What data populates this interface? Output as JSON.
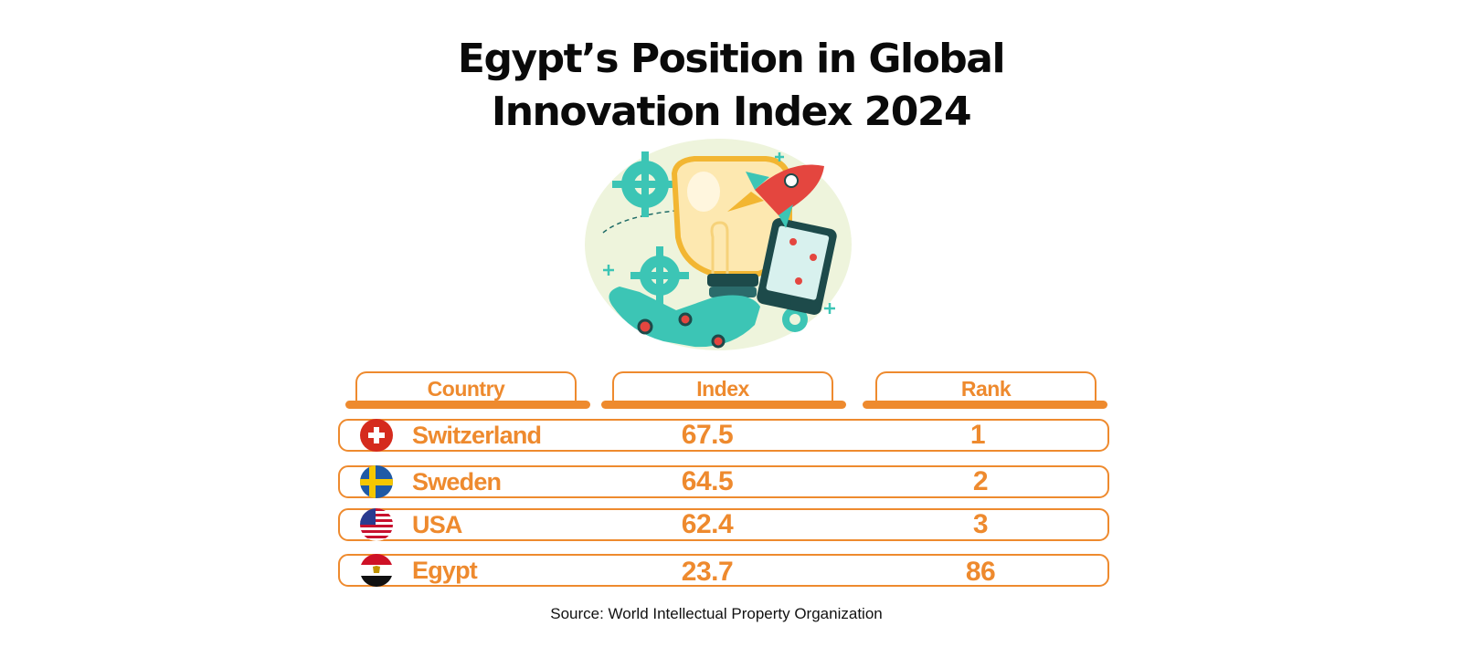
{
  "title_line1": "Egypt’s Position in Global",
  "title_line2": "Innovation Index 2024",
  "source": "Source: World Intellectual Property Organization",
  "colors": {
    "accent": "#ee8a2e",
    "illustration_teal": "#3cc5b5",
    "bulb": "#fde8b0"
  },
  "chart_data": {
    "type": "table",
    "columns": [
      "Country",
      "Index",
      "Rank"
    ],
    "rows": [
      {
        "country": "Switzerland",
        "index": "67.5",
        "rank": "1",
        "flag": "switzerland-flag-icon"
      },
      {
        "country": "Sweden",
        "index": "64.5",
        "rank": "2",
        "flag": "sweden-flag-icon"
      },
      {
        "country": "USA",
        "index": "62.4",
        "rank": "3",
        "flag": "usa-flag-icon"
      },
      {
        "country": "Egypt",
        "index": "23.7",
        "rank": "86",
        "flag": "egypt-flag-icon"
      }
    ]
  }
}
